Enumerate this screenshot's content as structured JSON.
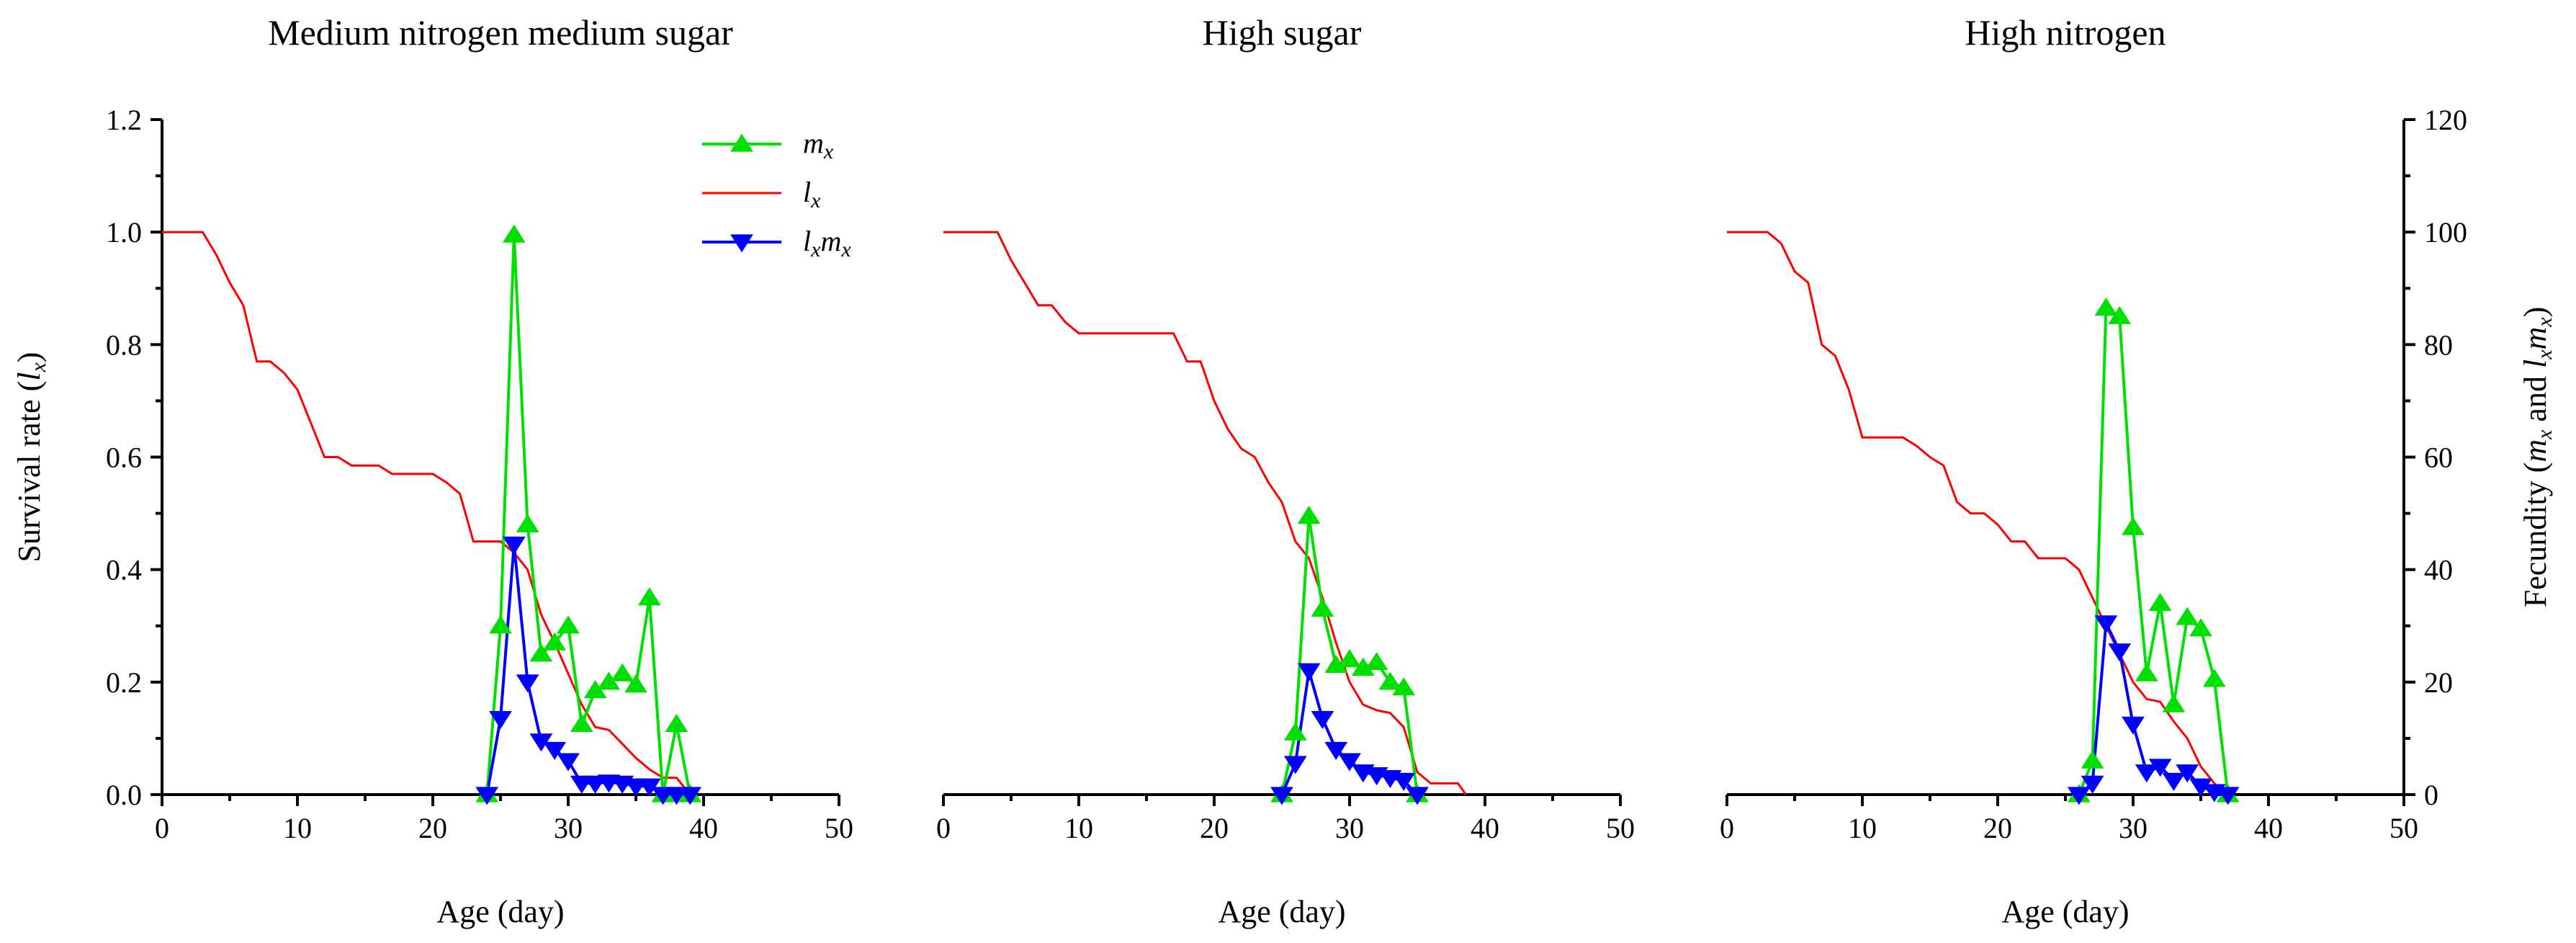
{
  "chart_data": {
    "type": "line",
    "x_label": "Age (day)",
    "y_left_label_prefix": "Survival rate (",
    "y_left_label_var": "l",
    "y_left_label_sub": "x",
    "y_left_label_suffix": ")",
    "y_right_label_prefix": "Fecundity (",
    "y_right_label_m": "m",
    "y_right_label_sub1": "x",
    "y_right_label_and": " and ",
    "y_right_label_l": "l",
    "y_right_label_sub2": "x",
    "y_right_label_m2": "m",
    "y_right_label_sub3": "x",
    "y_right_label_suffix": ")",
    "xlim": [
      0,
      50
    ],
    "ylim_left": [
      0,
      1.2
    ],
    "ylim_right": [
      0,
      120
    ],
    "x_ticks": [
      "0",
      "10",
      "20",
      "30",
      "40",
      "50"
    ],
    "y_left_ticks": [
      "0.0",
      "0.2",
      "0.4",
      "0.6",
      "0.8",
      "1.0",
      "1.2"
    ],
    "y_right_ticks": [
      "0",
      "20",
      "40",
      "60",
      "80",
      "100",
      "120"
    ],
    "legend": [
      {
        "main": "m",
        "sub": "x",
        "main2": "",
        "sub2": "",
        "color": "#00e000",
        "marker": "triangle-up"
      },
      {
        "main": "l",
        "sub": "x",
        "main2": "",
        "sub2": "",
        "color": "#ff0000",
        "marker": "none"
      },
      {
        "main": "l",
        "sub": "x",
        "main2": "m",
        "sub2": "x",
        "color": "#0000ff",
        "marker": "triangle-down"
      }
    ],
    "panels": [
      {
        "title": "Medium nitrogen medium sugar",
        "lx": [
          [
            0,
            1.0
          ],
          [
            3,
            1.0
          ],
          [
            4,
            0.96
          ],
          [
            5,
            0.91
          ],
          [
            6,
            0.87
          ],
          [
            7,
            0.77
          ],
          [
            8,
            0.77
          ],
          [
            9,
            0.75
          ],
          [
            10,
            0.72
          ],
          [
            11,
            0.66
          ],
          [
            12,
            0.6
          ],
          [
            13,
            0.6
          ],
          [
            14,
            0.585
          ],
          [
            15,
            0.585
          ],
          [
            16,
            0.585
          ],
          [
            17,
            0.57
          ],
          [
            18,
            0.57
          ],
          [
            19,
            0.57
          ],
          [
            20,
            0.57
          ],
          [
            21,
            0.555
          ],
          [
            22,
            0.535
          ],
          [
            23,
            0.45
          ],
          [
            24,
            0.45
          ],
          [
            25,
            0.45
          ],
          [
            26,
            0.43
          ],
          [
            27,
            0.4
          ],
          [
            28,
            0.32
          ],
          [
            29,
            0.27
          ],
          [
            30,
            0.215
          ],
          [
            31,
            0.16
          ],
          [
            32,
            0.12
          ],
          [
            33,
            0.115
          ],
          [
            34,
            0.09
          ],
          [
            35,
            0.065
          ],
          [
            36,
            0.045
          ],
          [
            37,
            0.03
          ],
          [
            38,
            0.03
          ],
          [
            39,
            0.0
          ]
        ],
        "mx": [
          [
            24,
            0
          ],
          [
            25,
            30
          ],
          [
            26,
            99.5
          ],
          [
            27,
            48
          ],
          [
            28,
            25
          ],
          [
            29,
            27
          ],
          [
            30,
            30
          ],
          [
            31,
            12.5
          ],
          [
            32,
            18.5
          ],
          [
            33,
            20
          ],
          [
            34,
            21.5
          ],
          [
            35,
            19.5
          ],
          [
            36,
            35
          ],
          [
            37,
            0
          ],
          [
            38,
            12.5
          ],
          [
            39,
            0
          ]
        ],
        "lxmx": [
          [
            24,
            0
          ],
          [
            25,
            13.5
          ],
          [
            26,
            44.5
          ],
          [
            27,
            20
          ],
          [
            28,
            9.5
          ],
          [
            29,
            8
          ],
          [
            30,
            6
          ],
          [
            31,
            2
          ],
          [
            32,
            2
          ],
          [
            33,
            2.2
          ],
          [
            34,
            2
          ],
          [
            35,
            1.5
          ],
          [
            36,
            1.5
          ],
          [
            37,
            0
          ],
          [
            38,
            0
          ],
          [
            39,
            0
          ]
        ]
      },
      {
        "title": "High sugar",
        "lx": [
          [
            0,
            1.0
          ],
          [
            4,
            1.0
          ],
          [
            5,
            0.95
          ],
          [
            6,
            0.91
          ],
          [
            7,
            0.87
          ],
          [
            8,
            0.87
          ],
          [
            9,
            0.84
          ],
          [
            10,
            0.82
          ],
          [
            11,
            0.82
          ],
          [
            12,
            0.82
          ],
          [
            13,
            0.82
          ],
          [
            14,
            0.82
          ],
          [
            15,
            0.82
          ],
          [
            16,
            0.82
          ],
          [
            17,
            0.82
          ],
          [
            18,
            0.77
          ],
          [
            19,
            0.77
          ],
          [
            20,
            0.7
          ],
          [
            21,
            0.65
          ],
          [
            22,
            0.615
          ],
          [
            23,
            0.6
          ],
          [
            24,
            0.555
          ],
          [
            25,
            0.52
          ],
          [
            26,
            0.45
          ],
          [
            27,
            0.42
          ],
          [
            28,
            0.35
          ],
          [
            29,
            0.27
          ],
          [
            30,
            0.2
          ],
          [
            31,
            0.16
          ],
          [
            32,
            0.15
          ],
          [
            33,
            0.145
          ],
          [
            34,
            0.12
          ],
          [
            35,
            0.04
          ],
          [
            36,
            0.02
          ],
          [
            37,
            0.02
          ],
          [
            38,
            0.02
          ],
          [
            38.6,
            0.0
          ]
        ],
        "mx": [
          [
            25,
            0
          ],
          [
            26,
            11
          ],
          [
            27,
            49.5
          ],
          [
            28,
            33
          ],
          [
            29,
            23
          ],
          [
            30,
            24
          ],
          [
            31,
            22.5
          ],
          [
            32,
            23.5
          ],
          [
            33,
            20
          ],
          [
            34,
            19
          ],
          [
            35,
            0
          ]
        ],
        "lxmx": [
          [
            25,
            0
          ],
          [
            26,
            5.5
          ],
          [
            27,
            22
          ],
          [
            28,
            13.5
          ],
          [
            29,
            8
          ],
          [
            30,
            6
          ],
          [
            31,
            4
          ],
          [
            32,
            3.5
          ],
          [
            33,
            3
          ],
          [
            34,
            2.5
          ],
          [
            35,
            0
          ]
        ]
      },
      {
        "title": "High nitrogen",
        "lx": [
          [
            0,
            1.0
          ],
          [
            3,
            1.0
          ],
          [
            4,
            0.98
          ],
          [
            5,
            0.93
          ],
          [
            6,
            0.91
          ],
          [
            7,
            0.8
          ],
          [
            8,
            0.78
          ],
          [
            9,
            0.72
          ],
          [
            10,
            0.635
          ],
          [
            11,
            0.635
          ],
          [
            12,
            0.635
          ],
          [
            13,
            0.635
          ],
          [
            14,
            0.62
          ],
          [
            15,
            0.6
          ],
          [
            16,
            0.585
          ],
          [
            17,
            0.52
          ],
          [
            18,
            0.5
          ],
          [
            19,
            0.5
          ],
          [
            20,
            0.48
          ],
          [
            21,
            0.45
          ],
          [
            22,
            0.45
          ],
          [
            23,
            0.42
          ],
          [
            24,
            0.42
          ],
          [
            25,
            0.42
          ],
          [
            26,
            0.4
          ],
          [
            27,
            0.35
          ],
          [
            28,
            0.3
          ],
          [
            29,
            0.25
          ],
          [
            30,
            0.2
          ],
          [
            31,
            0.17
          ],
          [
            32,
            0.165
          ],
          [
            33,
            0.13
          ],
          [
            34,
            0.1
          ],
          [
            35,
            0.05
          ],
          [
            36,
            0.02
          ],
          [
            37,
            0.0
          ]
        ],
        "mx": [
          [
            26,
            0
          ],
          [
            27,
            6
          ],
          [
            28,
            86.5
          ],
          [
            29,
            85
          ],
          [
            30,
            47.5
          ],
          [
            31,
            21.5
          ],
          [
            32,
            34
          ],
          [
            33,
            16
          ],
          [
            34,
            31.5
          ],
          [
            35,
            29.5
          ],
          [
            36,
            20.5
          ],
          [
            37,
            0
          ]
        ],
        "lxmx": [
          [
            26,
            0
          ],
          [
            27,
            2
          ],
          [
            28,
            30.5
          ],
          [
            29,
            25.5
          ],
          [
            30,
            12.5
          ],
          [
            31,
            4
          ],
          [
            32,
            5
          ],
          [
            33,
            2.5
          ],
          [
            34,
            4
          ],
          [
            35,
            1.5
          ],
          [
            36,
            0.5
          ],
          [
            37,
            0
          ]
        ]
      }
    ]
  }
}
